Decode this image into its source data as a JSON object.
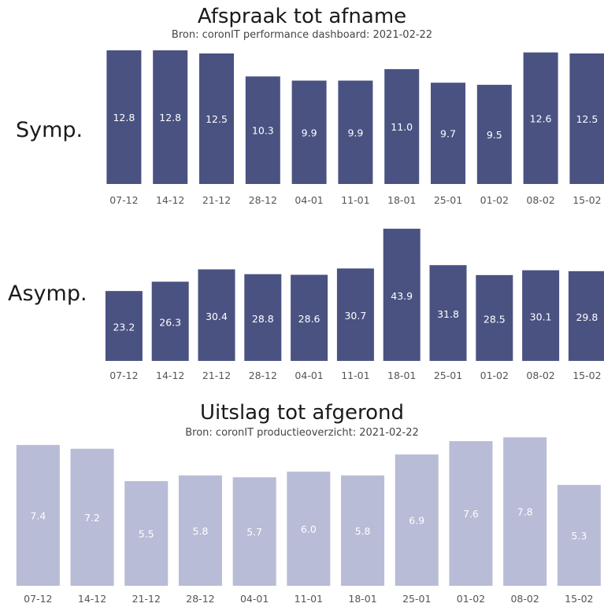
{
  "colors": {
    "dark_bar": "#4a5282",
    "light_bar": "#b8bcd6"
  },
  "top": {
    "title": "Afspraak tot afname",
    "subtitle": "Bron: coronIT performance dashboard: 2021-02-22"
  },
  "bottom": {
    "title": "Uitslag tot afgerond",
    "subtitle": "Bron: coronIT productieoverzicht: 2021-02-22"
  },
  "chart_data": [
    {
      "type": "bar",
      "row_label": "Symp.",
      "categories": [
        "07-12",
        "14-12",
        "21-12",
        "28-12",
        "04-01",
        "11-01",
        "18-01",
        "25-01",
        "01-02",
        "08-02",
        "15-02"
      ],
      "values": [
        12.8,
        12.8,
        12.5,
        10.3,
        9.9,
        9.9,
        11.0,
        9.7,
        9.5,
        12.6,
        12.5
      ],
      "value_labels": [
        "12.8",
        "12.8",
        "12.5",
        "10.3",
        "9.9",
        "9.9",
        "11.0",
        "9.7",
        "9.5",
        "12.6",
        "12.5"
      ],
      "color": "#4a5282"
    },
    {
      "type": "bar",
      "row_label": "Asymp.",
      "categories": [
        "07-12",
        "14-12",
        "21-12",
        "28-12",
        "04-01",
        "11-01",
        "18-01",
        "25-01",
        "01-02",
        "08-02",
        "15-02"
      ],
      "values": [
        23.2,
        26.3,
        30.4,
        28.8,
        28.6,
        30.7,
        43.9,
        31.8,
        28.5,
        30.1,
        29.8
      ],
      "value_labels": [
        "23.2",
        "26.3",
        "30.4",
        "28.8",
        "28.6",
        "30.7",
        "43.9",
        "31.8",
        "28.5",
        "30.1",
        "29.8"
      ],
      "color": "#4a5282"
    },
    {
      "type": "bar",
      "categories": [
        "07-12",
        "14-12",
        "21-12",
        "28-12",
        "04-01",
        "11-01",
        "18-01",
        "25-01",
        "01-02",
        "08-02",
        "15-02"
      ],
      "values": [
        7.4,
        7.2,
        5.5,
        5.8,
        5.7,
        6.0,
        5.8,
        6.9,
        7.6,
        7.8,
        5.3
      ],
      "value_labels": [
        "7.4",
        "7.2",
        "5.5",
        "5.8",
        "5.7",
        "6.0",
        "5.8",
        "6.9",
        "7.6",
        "7.8",
        "5.3"
      ],
      "color": "#b8bcd6"
    }
  ]
}
